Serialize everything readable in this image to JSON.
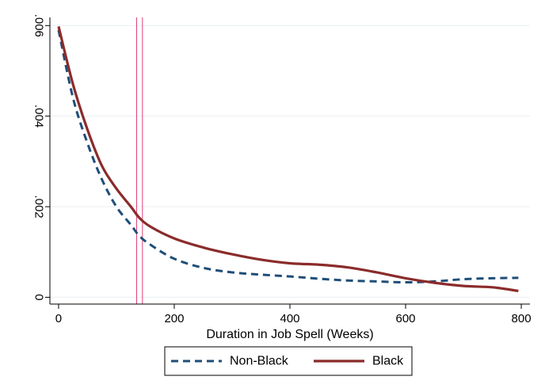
{
  "chart_data": {
    "type": "line",
    "title": "",
    "xlabel": "Duration in Job Spell (Weeks)",
    "ylabel": "",
    "xlim": [
      -15,
      815
    ],
    "ylim": [
      -0.00015,
      0.00618
    ],
    "xticks": [
      0,
      200,
      400,
      600,
      800
    ],
    "xtick_labels": [
      "0",
      "200",
      "400",
      "600",
      "800"
    ],
    "yticks": [
      0,
      0.002,
      0.004,
      0.006
    ],
    "ytick_labels": [
      "0",
      ".002",
      ".004",
      ".006"
    ],
    "grid": true,
    "legend_position": "bottom",
    "reference_lines_x": [
      135,
      145
    ],
    "colors": {
      "non_black": "#1f4e79",
      "black": "#8b2b2b",
      "ref_line": "#e0407a",
      "grid": "#e8eef2"
    },
    "series": [
      {
        "name": "Non-Black",
        "style": "dashed",
        "x": [
          0,
          25,
          50,
          75,
          100,
          125,
          140,
          160,
          200,
          250,
          300,
          350,
          400,
          450,
          500,
          550,
          600,
          650,
          700,
          750,
          795
        ],
        "y": [
          0.0059,
          0.0044,
          0.0034,
          0.0026,
          0.002,
          0.0016,
          0.00135,
          0.00115,
          0.00085,
          0.00065,
          0.00055,
          0.0005,
          0.00046,
          0.00041,
          0.00037,
          0.00035,
          0.00033,
          0.00035,
          0.0004,
          0.00042,
          0.00043
        ]
      },
      {
        "name": "Black",
        "style": "solid",
        "x": [
          0,
          25,
          50,
          75,
          100,
          125,
          140,
          160,
          200,
          250,
          300,
          350,
          400,
          450,
          500,
          550,
          600,
          650,
          700,
          750,
          795
        ],
        "y": [
          0.00598,
          0.0047,
          0.0037,
          0.0029,
          0.0024,
          0.002,
          0.00175,
          0.00155,
          0.0013,
          0.0011,
          0.00095,
          0.00083,
          0.00075,
          0.00072,
          0.00066,
          0.00055,
          0.00042,
          0.00032,
          0.00025,
          0.00022,
          0.00014
        ]
      }
    ]
  }
}
